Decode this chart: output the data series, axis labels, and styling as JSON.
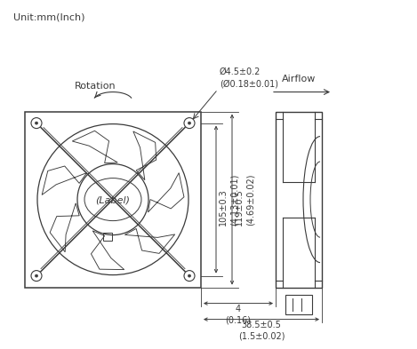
{
  "unit_text": "Unit:mm(Inch)",
  "rotation_text": "Rotation",
  "airflow_text": "Airflow",
  "label_text": "(Label)",
  "dim_hole": "Ø4.5±0.2\n(Ø0.18±0.01)",
  "dim_inner": "105±0.3\n(4.13±0.01)",
  "dim_outer": "119±0.5\n(4.69±0.02)",
  "dim_depth1": "4\n(0.16)",
  "dim_depth2": "38.5±0.5\n(1.5±0.02)",
  "line_color": "#3a3a3a",
  "bg_color": "#ffffff",
  "font_size_small": 7,
  "font_size_label": 8
}
